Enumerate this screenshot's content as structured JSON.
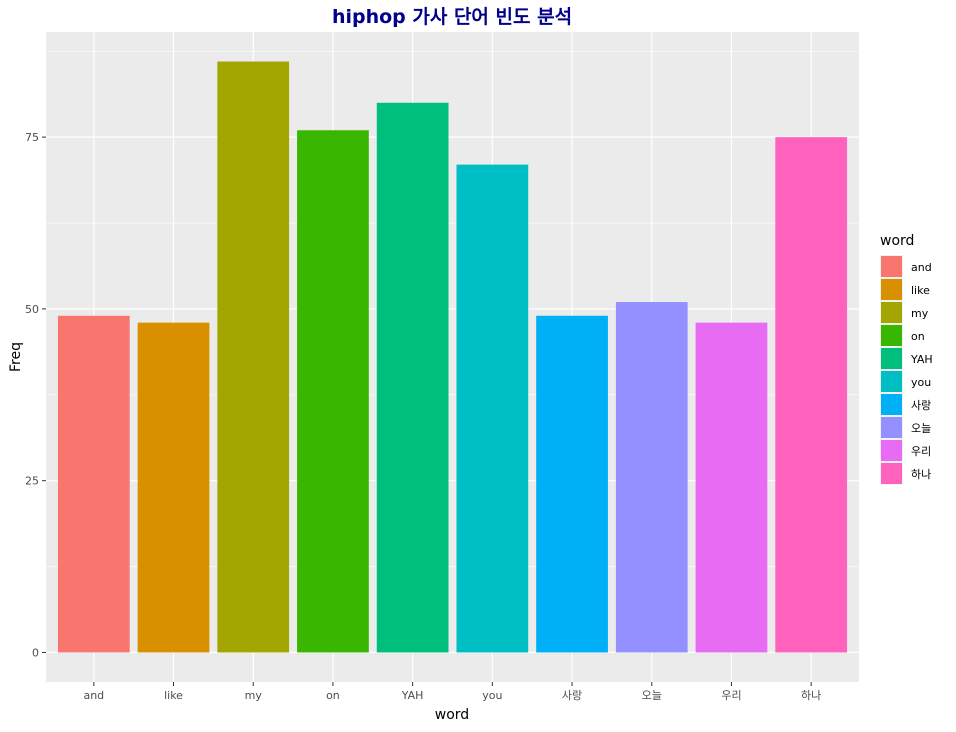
{
  "chart_data": {
    "type": "bar",
    "title": "hiphop 가사 단어 빈도 분석",
    "xlabel": "word",
    "ylabel": "Freq",
    "categories": [
      "and",
      "like",
      "my",
      "on",
      "YAH",
      "you",
      "사랑",
      "오늘",
      "우리",
      "하나"
    ],
    "values": [
      49,
      48,
      86,
      76,
      80,
      71,
      49,
      51,
      48,
      75
    ],
    "colors": [
      "#F8766D",
      "#D89000",
      "#A3A500",
      "#39B600",
      "#00BF7D",
      "#00BFC4",
      "#00B0F6",
      "#9590FF",
      "#E76BF3",
      "#FF62BC"
    ],
    "yticks": [
      0,
      25,
      50,
      75
    ],
    "ylim": [
      -4.3,
      90.3
    ],
    "grid": true,
    "legend": {
      "title": "word",
      "position": "right",
      "entries": [
        "and",
        "like",
        "my",
        "on",
        "YAH",
        "you",
        "사랑",
        "오늘",
        "우리",
        "하나"
      ]
    },
    "title_color": "#00008B",
    "panel_background": "#EBEBEB"
  }
}
